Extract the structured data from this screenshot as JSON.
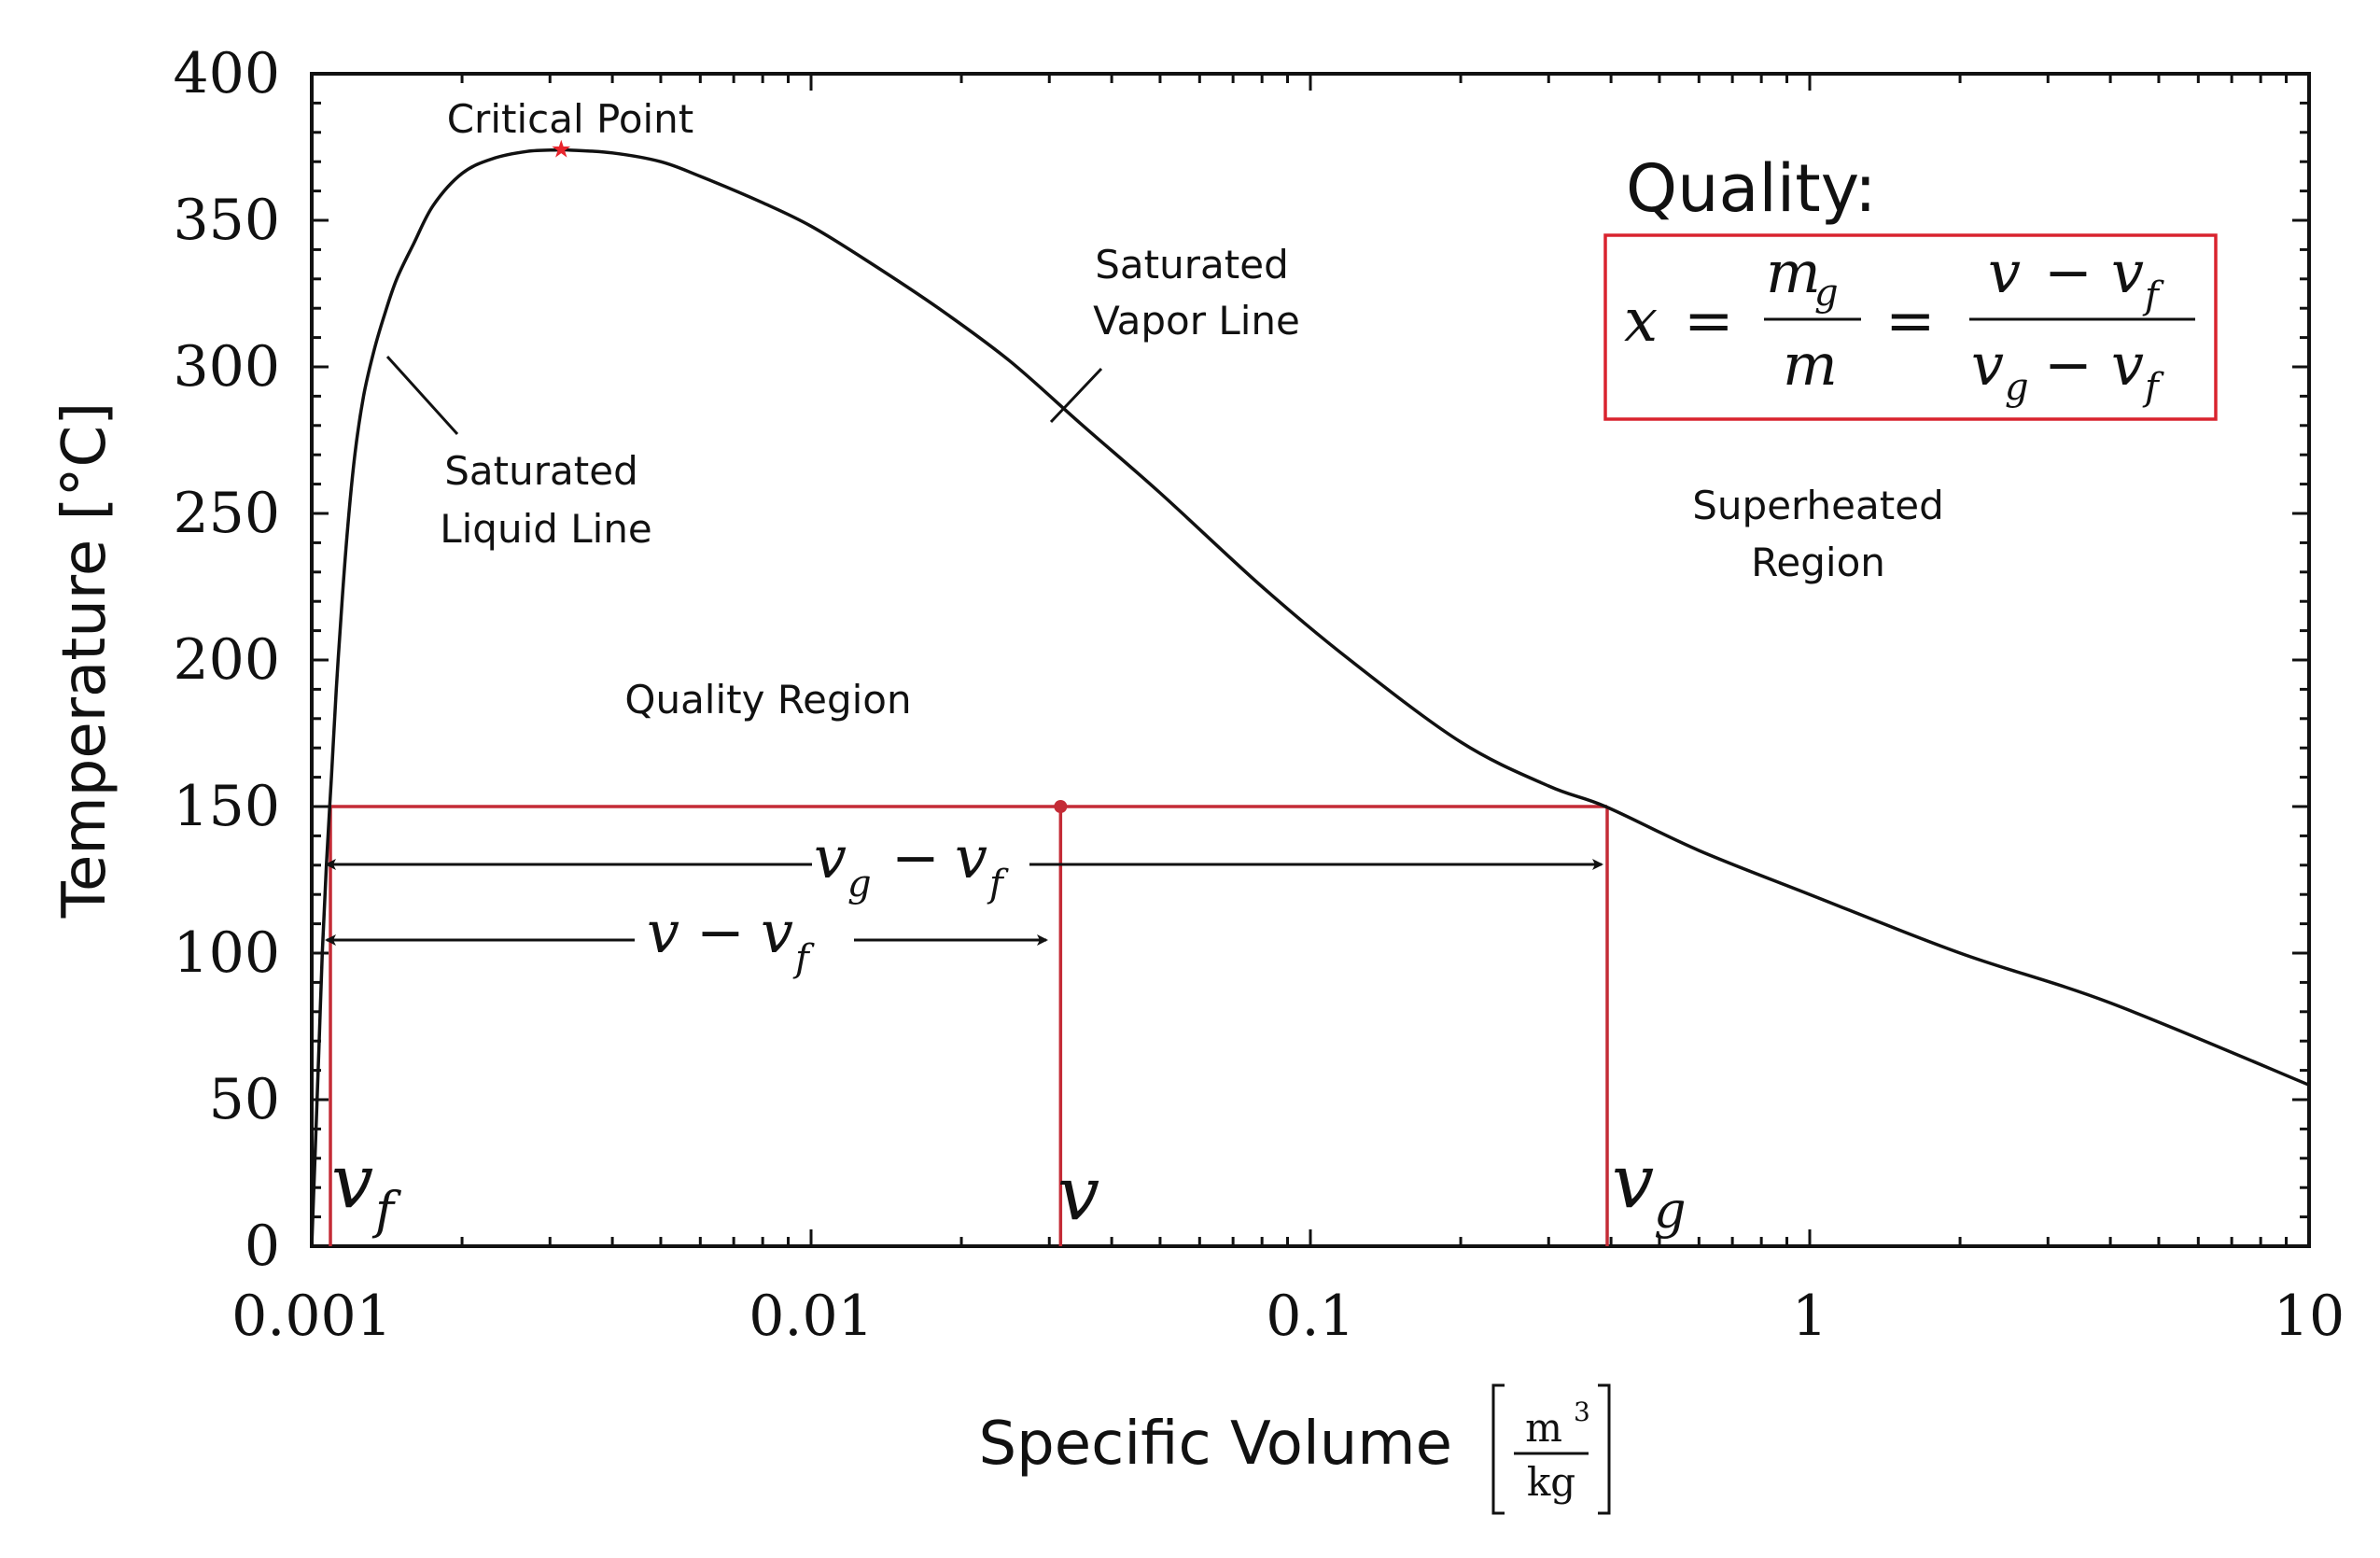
{
  "chart_data": {
    "type": "line",
    "xscale": "log",
    "xlim": [
      0.001,
      10
    ],
    "ylim": [
      0,
      400
    ],
    "grid": false,
    "xticks": [
      0.001,
      0.01,
      0.1,
      1,
      10
    ],
    "xtick_labels": [
      "0.001",
      "0.01",
      "0.1",
      "1",
      "10"
    ],
    "yticks": [
      0,
      50,
      100,
      150,
      200,
      250,
      300,
      350,
      400
    ],
    "ytick_labels": [
      "0",
      "50",
      "100",
      "150",
      "200",
      "250",
      "300",
      "350",
      "400"
    ],
    "xlabel": "Specific Volume",
    "xlabel_unit_num": "m",
    "xlabel_unit_exp": "3",
    "xlabel_unit_den": "kg",
    "ylabel": "Temperature [°C]",
    "series": [
      {
        "color": "#111111",
        "x": [
          0.001,
          0.00101,
          0.00102,
          0.001035,
          0.00105,
          0.00107,
          0.001095,
          0.00112,
          0.00115,
          0.00118,
          0.00122,
          0.00127,
          0.00133,
          0.0014,
          0.00148,
          0.0016,
          0.00175,
          0.002,
          0.0023,
          0.0027,
          0.0031,
          0.00325,
          0.004,
          0.005,
          0.006,
          0.008,
          0.01,
          0.013,
          0.018,
          0.025,
          0.035,
          0.05,
          0.08,
          0.12,
          0.2,
          0.3,
          0.39,
          0.6,
          1,
          2,
          4,
          10
        ],
        "y": [
          0,
          20,
          40,
          70,
          100,
          130,
          160,
          190,
          220,
          245,
          270,
          290,
          305,
          318,
          330,
          342,
          355,
          366,
          371,
          373.5,
          374,
          374,
          373,
          370,
          365,
          356,
          348,
          336,
          320,
          302,
          280,
          257,
          225,
          200,
          172,
          157,
          150,
          135,
          120,
          100,
          83,
          55
        ]
      }
    ],
    "critical_point": {
      "x": 0.00316,
      "y": 374,
      "color": "#e8242c"
    },
    "construction": {
      "color": "#c42b36",
      "T": 150,
      "vf": 0.00109,
      "v": 0.0316,
      "vg": 0.393
    },
    "annotations": {
      "critical_point": "Critical Point",
      "saturated_vapor_line": [
        "Saturated",
        "Vapor Line"
      ],
      "saturated_liquid_line": [
        "Saturated",
        "Liquid Line"
      ],
      "superheated_region": [
        "Superheated",
        "Region"
      ],
      "quality_region": "Quality Region",
      "quality_title": "Quality:",
      "formula": {
        "x": "x",
        "equals": "=",
        "mg_base": "m",
        "mg_sub": "g",
        "m": "m",
        "v": "v",
        "minus": "−",
        "vf_sub": "f",
        "vg_sub": "g",
        "box_color": "#d9232e"
      },
      "arrow_vg_vf": {
        "v1": "v",
        "s1": "g",
        "minus": "−",
        "v2": "v",
        "s2": "f"
      },
      "arrow_v_vf": {
        "v1": "v",
        "minus": "−",
        "v2": "v",
        "s2": "f"
      },
      "label_vf": {
        "v": "v",
        "sub": "f"
      },
      "label_v": "v",
      "label_vg": {
        "v": "v",
        "sub": "g"
      }
    }
  }
}
